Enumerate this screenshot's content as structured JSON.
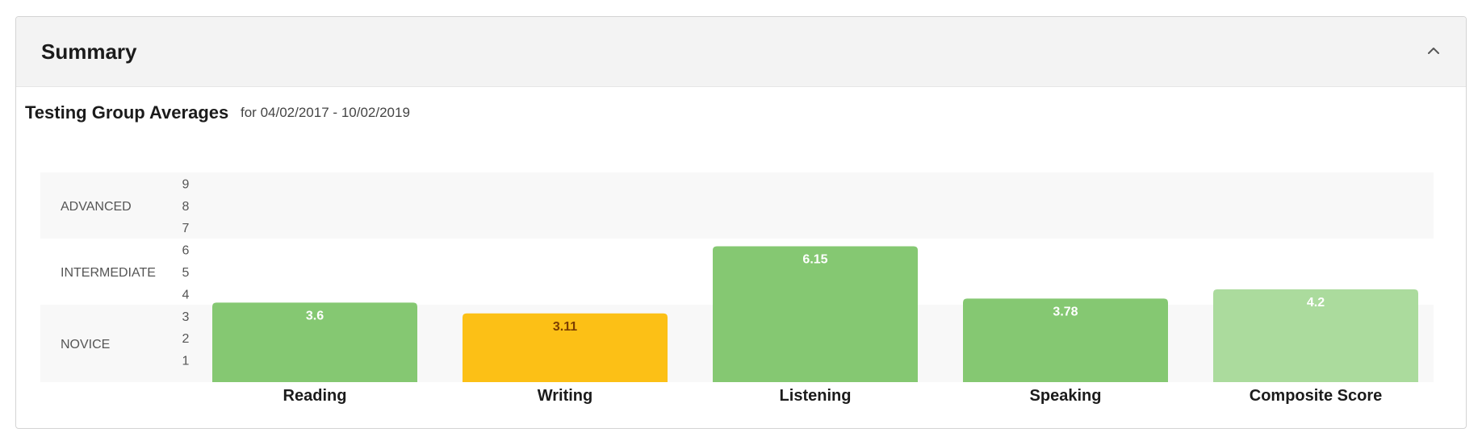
{
  "panel": {
    "title": "Summary"
  },
  "section": {
    "title": "Testing Group Averages",
    "date_prefix": "for",
    "date_start": "04/02/2017",
    "date_sep": "-",
    "date_end": "10/02/2019"
  },
  "icons": {
    "collapse": "chevron-up-icon"
  },
  "colors": {
    "novice_bar": "#fcc016",
    "novice_label": "#7b3d00",
    "intermediate_bar": "#85c872",
    "composite_bar": "#abdb9d",
    "band_shade": "#f8f8f8",
    "axis_text": "#555555"
  },
  "chart_data": {
    "type": "bar",
    "categories": [
      "Reading",
      "Writing",
      "Listening",
      "Speaking",
      "Composite Score"
    ],
    "values": [
      3.6,
      3.11,
      6.15,
      3.78,
      4.2
    ],
    "value_labels": [
      "3.6",
      "3.11",
      "6.15",
      "3.78",
      "4.2"
    ],
    "yticks": [
      1,
      2,
      3,
      4,
      5,
      6,
      7,
      8,
      9
    ],
    "bands": [
      {
        "label": "ADVANCED",
        "from": 6.5,
        "to": 9.5
      },
      {
        "label": "INTERMEDIATE",
        "from": 3.5,
        "to": 6.5
      },
      {
        "label": "NOVICE",
        "from": 0,
        "to": 3.5
      }
    ],
    "ylim": [
      0,
      9.5
    ],
    "grid": false,
    "legend": "none"
  }
}
